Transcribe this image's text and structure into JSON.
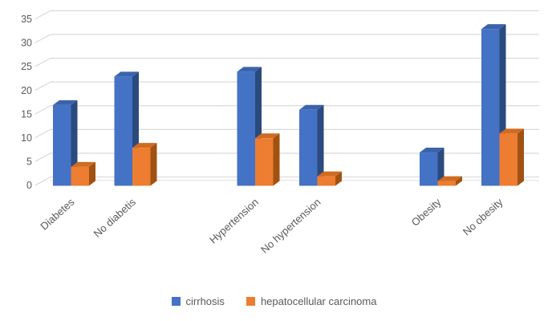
{
  "chart_data": {
    "type": "bar",
    "variant": "3d-clustered-column",
    "categories": [
      "Diabetes",
      "No diabetis",
      "Hypertension",
      "No hypertension",
      "Obesity",
      "No obesity"
    ],
    "series": [
      {
        "name": "cirrhosis",
        "color": "#4472C4",
        "values": [
          17,
          23,
          24,
          16,
          7,
          33
        ]
      },
      {
        "name": "hepatocellular carcinoma",
        "color": "#ED7D31",
        "values": [
          4,
          8,
          10,
          2,
          1,
          11
        ]
      }
    ],
    "ylim": [
      0,
      35
    ],
    "yticks": [
      0,
      5,
      10,
      15,
      20,
      25,
      30,
      35
    ],
    "grid": true,
    "legend_position": "bottom"
  },
  "colors": {
    "bar_blue": {
      "front": "#4472C4",
      "top": "#3B63AB",
      "side": "#2B4A7E"
    },
    "bar_orange": {
      "front": "#ED7D31",
      "top": "#D06B21",
      "side": "#A05212"
    },
    "gridline": "#D6D6D6",
    "floor_line": "#DDDDDD",
    "axis_text": "#595959"
  }
}
